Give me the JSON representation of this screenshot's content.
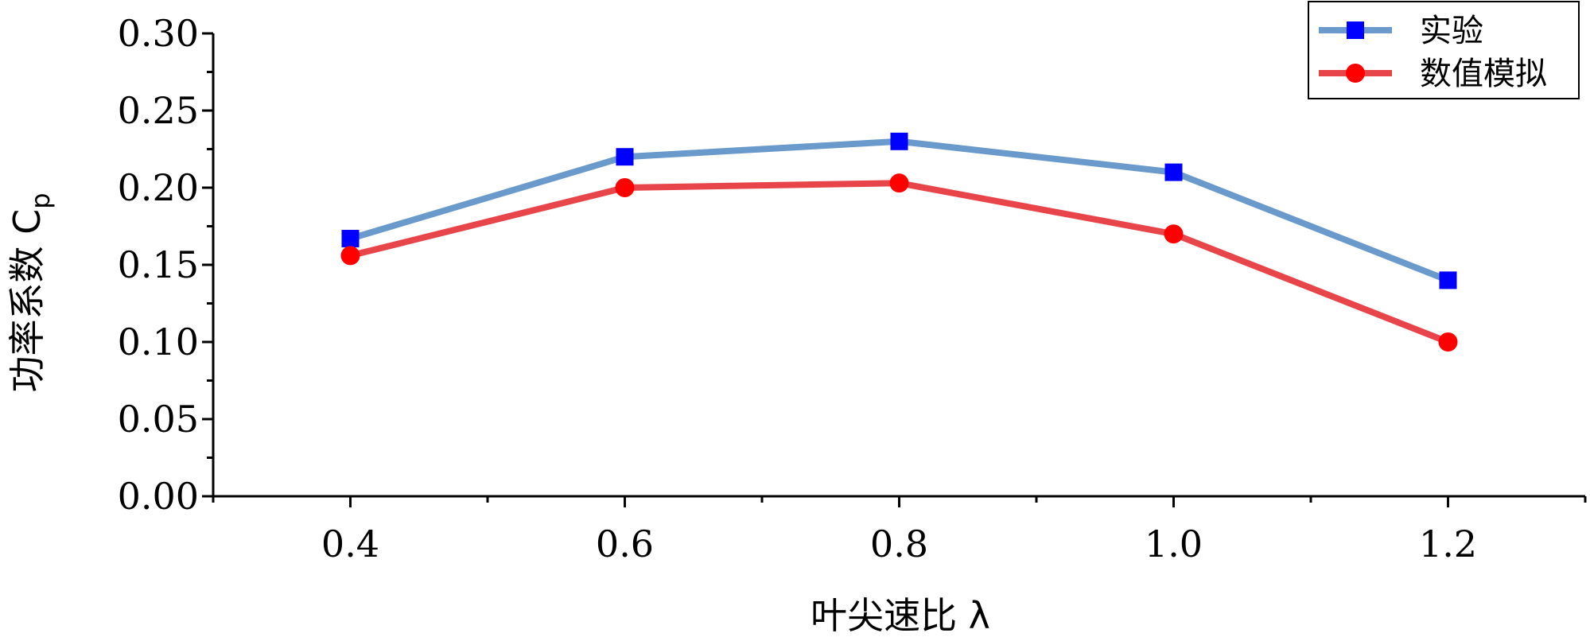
{
  "chart_data": {
    "type": "line",
    "x": [
      0.4,
      0.6,
      0.8,
      1.0,
      1.2
    ],
    "series": [
      {
        "name": "实验",
        "values": [
          0.167,
          0.22,
          0.23,
          0.21,
          0.14
        ],
        "color": "#6a9acb",
        "marker": "square",
        "marker_color": "#0000ff"
      },
      {
        "name": "数值模拟",
        "values": [
          0.156,
          0.2,
          0.203,
          0.17,
          0.1
        ],
        "color": "#e8454a",
        "marker": "circle",
        "marker_color": "#ff0000"
      }
    ],
    "xlabel": "叶尖速比 λ",
    "ylabel": {
      "main": "功率系数 C",
      "sub": "p"
    },
    "xlim": [
      0.3,
      1.3
    ],
    "ylim": [
      0,
      0.3
    ],
    "x_ticks": [
      "0.4",
      "0.6",
      "0.8",
      "1.0",
      "1.2"
    ],
    "y_ticks": [
      "0.00",
      "0.05",
      "0.10",
      "0.15",
      "0.20",
      "0.25",
      "0.30"
    ],
    "grid": false,
    "legend_position": "top-right"
  }
}
